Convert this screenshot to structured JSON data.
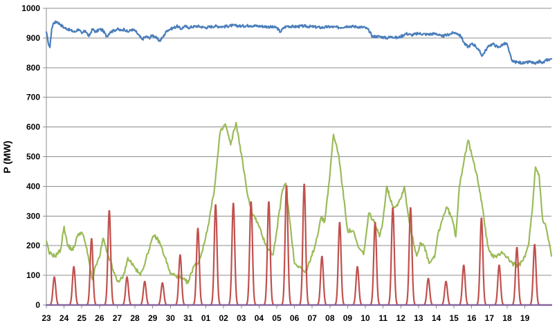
{
  "chart_data": {
    "type": "line",
    "title": "",
    "xlabel": "",
    "ylabel": "P (MW)",
    "ylim": [
      0,
      1000
    ],
    "yticks": [
      0,
      100,
      200,
      300,
      400,
      500,
      600,
      700,
      800,
      900,
      1000
    ],
    "xtick_labels": [
      "23",
      "24",
      "25",
      "26",
      "27",
      "28",
      "29",
      "30",
      "31",
      "01",
      "02",
      "03",
      "04",
      "05",
      "06",
      "07",
      "08",
      "09",
      "10",
      "11",
      "12",
      "13",
      "14",
      "15",
      "16",
      "17",
      "18",
      "19"
    ],
    "grid": "horizontal",
    "legend": "none",
    "series": [
      {
        "color": "#4a7ebb",
        "points": [
          [
            0.0,
            920
          ],
          [
            0.1,
            885
          ],
          [
            0.2,
            868
          ],
          [
            0.3,
            930
          ],
          [
            0.4,
            950
          ],
          [
            0.6,
            955
          ],
          [
            0.8,
            945
          ],
          [
            1.0,
            935
          ],
          [
            1.2,
            930
          ],
          [
            1.4,
            925
          ],
          [
            1.6,
            920
          ],
          [
            1.8,
            930
          ],
          [
            2.0,
            915
          ],
          [
            2.2,
            925
          ],
          [
            2.4,
            905
          ],
          [
            2.6,
            930
          ],
          [
            2.8,
            920
          ],
          [
            3.0,
            930
          ],
          [
            3.2,
            925
          ],
          [
            3.4,
            905
          ],
          [
            3.6,
            920
          ],
          [
            3.8,
            925
          ],
          [
            4.0,
            930
          ],
          [
            4.2,
            925
          ],
          [
            4.4,
            930
          ],
          [
            4.6,
            920
          ],
          [
            4.8,
            928
          ],
          [
            5.0,
            925
          ],
          [
            5.2,
            910
          ],
          [
            5.4,
            895
          ],
          [
            5.6,
            905
          ],
          [
            5.8,
            900
          ],
          [
            6.0,
            910
          ],
          [
            6.2,
            900
          ],
          [
            6.4,
            890
          ],
          [
            6.6,
            905
          ],
          [
            6.8,
            925
          ],
          [
            7.0,
            930
          ],
          [
            7.2,
            935
          ],
          [
            7.4,
            940
          ],
          [
            7.6,
            930
          ],
          [
            7.8,
            940
          ],
          [
            8.0,
            935
          ],
          [
            8.5,
            940
          ],
          [
            9.0,
            935
          ],
          [
            9.5,
            940
          ],
          [
            10.0,
            938
          ],
          [
            10.5,
            942
          ],
          [
            11.0,
            940
          ],
          [
            11.5,
            942
          ],
          [
            12.0,
            940
          ],
          [
            12.5,
            938
          ],
          [
            13.0,
            935
          ],
          [
            13.2,
            920
          ],
          [
            13.4,
            935
          ],
          [
            13.6,
            940
          ],
          [
            14.0,
            938
          ],
          [
            14.5,
            940
          ],
          [
            15.0,
            938
          ],
          [
            15.5,
            935
          ],
          [
            16.0,
            938
          ],
          [
            16.5,
            935
          ],
          [
            17.0,
            940
          ],
          [
            17.5,
            938
          ],
          [
            18.0,
            935
          ],
          [
            18.2,
            925
          ],
          [
            18.4,
            905
          ],
          [
            18.8,
            905
          ],
          [
            19.2,
            900
          ],
          [
            19.5,
            905
          ],
          [
            19.8,
            900
          ],
          [
            20.0,
            905
          ],
          [
            20.3,
            915
          ],
          [
            20.6,
            910
          ],
          [
            21.0,
            915
          ],
          [
            21.5,
            912
          ],
          [
            22.0,
            915
          ],
          [
            22.3,
            905
          ],
          [
            22.6,
            910
          ],
          [
            23.0,
            918
          ],
          [
            23.2,
            915
          ],
          [
            23.4,
            905
          ],
          [
            23.6,
            880
          ],
          [
            23.8,
            870
          ],
          [
            24.0,
            880
          ],
          [
            24.2,
            875
          ],
          [
            24.4,
            858
          ],
          [
            24.6,
            840
          ],
          [
            24.8,
            860
          ],
          [
            25.0,
            875
          ],
          [
            25.2,
            880
          ],
          [
            25.5,
            868
          ],
          [
            25.8,
            880
          ],
          [
            26.0,
            880
          ],
          [
            26.1,
            855
          ],
          [
            26.3,
            820
          ],
          [
            26.6,
            818
          ],
          [
            27.0,
            815
          ],
          [
            27.3,
            820
          ],
          [
            27.6,
            812
          ],
          [
            27.8,
            822
          ],
          [
            28.0,
            815
          ],
          [
            28.2,
            825
          ],
          [
            28.5,
            830
          ]
        ]
      },
      {
        "color": "#9bbb59",
        "points": [
          [
            0.0,
            215
          ],
          [
            0.15,
            175
          ],
          [
            0.5,
            165
          ],
          [
            0.8,
            185
          ],
          [
            1.0,
            265
          ],
          [
            1.2,
            200
          ],
          [
            1.5,
            185
          ],
          [
            1.8,
            240
          ],
          [
            2.0,
            245
          ],
          [
            2.2,
            210
          ],
          [
            2.4,
            150
          ],
          [
            2.6,
            85
          ],
          [
            2.8,
            135
          ],
          [
            3.0,
            160
          ],
          [
            3.2,
            225
          ],
          [
            3.4,
            180
          ],
          [
            3.6,
            150
          ],
          [
            3.8,
            110
          ],
          [
            4.0,
            80
          ],
          [
            4.3,
            90
          ],
          [
            4.5,
            130
          ],
          [
            4.6,
            160
          ],
          [
            5.0,
            125
          ],
          [
            5.3,
            100
          ],
          [
            5.6,
            150
          ],
          [
            5.9,
            210
          ],
          [
            6.1,
            235
          ],
          [
            6.4,
            210
          ],
          [
            6.7,
            160
          ],
          [
            7.0,
            105
          ],
          [
            7.3,
            100
          ],
          [
            7.6,
            90
          ],
          [
            8.0,
            75
          ],
          [
            8.3,
            130
          ],
          [
            8.6,
            145
          ],
          [
            8.9,
            205
          ],
          [
            9.2,
            290
          ],
          [
            9.5,
            400
          ],
          [
            9.8,
            580
          ],
          [
            10.1,
            610
          ],
          [
            10.4,
            540
          ],
          [
            10.7,
            615
          ],
          [
            11.0,
            510
          ],
          [
            11.3,
            390
          ],
          [
            11.6,
            310
          ],
          [
            11.9,
            280
          ],
          [
            12.2,
            230
          ],
          [
            12.5,
            190
          ],
          [
            12.8,
            170
          ],
          [
            13.0,
            250
          ],
          [
            13.3,
            380
          ],
          [
            13.5,
            410
          ],
          [
            13.8,
            250
          ],
          [
            14.0,
            140
          ],
          [
            14.3,
            130
          ],
          [
            14.6,
            110
          ],
          [
            14.9,
            150
          ],
          [
            15.2,
            210
          ],
          [
            15.5,
            295
          ],
          [
            15.7,
            280
          ],
          [
            16.0,
            440
          ],
          [
            16.2,
            575
          ],
          [
            16.5,
            505
          ],
          [
            16.7,
            400
          ],
          [
            17.0,
            250
          ],
          [
            17.3,
            250
          ],
          [
            17.6,
            195
          ],
          [
            17.9,
            170
          ],
          [
            18.2,
            310
          ],
          [
            18.5,
            280
          ],
          [
            18.8,
            230
          ],
          [
            19.0,
            290
          ],
          [
            19.2,
            400
          ],
          [
            19.5,
            340
          ],
          [
            19.7,
            330
          ],
          [
            20.0,
            360
          ],
          [
            20.2,
            400
          ],
          [
            20.4,
            310
          ],
          [
            20.6,
            240
          ],
          [
            20.9,
            165
          ],
          [
            21.1,
            210
          ],
          [
            21.3,
            200
          ],
          [
            21.6,
            140
          ],
          [
            21.9,
            160
          ],
          [
            22.1,
            240
          ],
          [
            22.4,
            300
          ],
          [
            22.6,
            330
          ],
          [
            22.9,
            290
          ],
          [
            23.1,
            230
          ],
          [
            23.3,
            400
          ],
          [
            23.6,
            500
          ],
          [
            23.8,
            555
          ],
          [
            24.0,
            505
          ],
          [
            24.3,
            440
          ],
          [
            24.6,
            330
          ],
          [
            24.9,
            200
          ],
          [
            25.1,
            170
          ],
          [
            25.4,
            160
          ],
          [
            25.7,
            180
          ],
          [
            26.0,
            160
          ],
          [
            26.3,
            140
          ],
          [
            26.6,
            130
          ],
          [
            26.9,
            150
          ],
          [
            27.2,
            200
          ],
          [
            27.4,
            310
          ],
          [
            27.6,
            465
          ],
          [
            27.8,
            440
          ],
          [
            28.0,
            290
          ],
          [
            28.2,
            260
          ],
          [
            28.4,
            200
          ],
          [
            28.5,
            165
          ]
        ]
      },
      {
        "color": "#c0504d",
        "peaks": [
          [
            0.45,
            95
          ],
          [
            1.55,
            130
          ],
          [
            2.55,
            225
          ],
          [
            3.55,
            320
          ],
          [
            4.55,
            95
          ],
          [
            5.55,
            80
          ],
          [
            6.55,
            75
          ],
          [
            7.55,
            170
          ],
          [
            8.55,
            260
          ],
          [
            9.55,
            340
          ],
          [
            10.55,
            345
          ],
          [
            11.55,
            350
          ],
          [
            12.55,
            350
          ],
          [
            13.55,
            405
          ],
          [
            14.55,
            410
          ],
          [
            15.55,
            165
          ],
          [
            16.55,
            280
          ],
          [
            17.55,
            130
          ],
          [
            18.55,
            280
          ],
          [
            19.55,
            330
          ],
          [
            20.55,
            330
          ],
          [
            21.55,
            90
          ],
          [
            22.55,
            80
          ],
          [
            23.55,
            135
          ],
          [
            24.55,
            295
          ],
          [
            25.55,
            135
          ],
          [
            26.55,
            195
          ],
          [
            27.55,
            205
          ]
        ]
      },
      {
        "color": "#8064a2",
        "points": [
          [
            0.0,
            0
          ],
          [
            28.5,
            0
          ]
        ]
      }
    ]
  }
}
